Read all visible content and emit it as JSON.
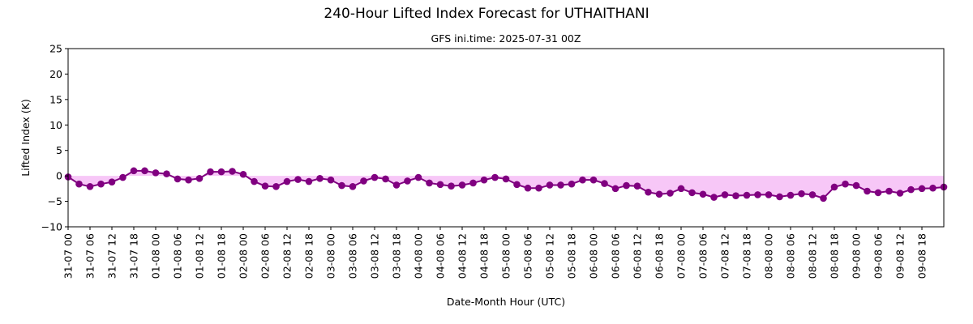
{
  "chart_data": {
    "type": "line",
    "title": "240-Hour Lifted Index Forecast for UTHAITHANI",
    "subtitle": "GFS ini.time: 2025-07-31 00Z",
    "xlabel": "Date-Month Hour (UTC)",
    "ylabel": "Lifted Index (K)",
    "ylim": [
      -10,
      25
    ],
    "yticks": [
      -10,
      -5,
      0,
      5,
      10,
      15,
      20,
      25
    ],
    "xtick_labels": [
      "31-07 00",
      "31-07 06",
      "31-07 12",
      "31-07 18",
      "01-08 00",
      "01-08 06",
      "01-08 12",
      "01-08 18",
      "02-08 00",
      "02-08 06",
      "02-08 12",
      "02-08 18",
      "03-08 00",
      "03-08 06",
      "03-08 12",
      "03-08 18",
      "04-08 00",
      "04-08 06",
      "04-08 12",
      "04-08 18",
      "05-08 00",
      "05-08 06",
      "05-08 12",
      "05-08 18",
      "06-08 00",
      "06-08 06",
      "06-08 12",
      "06-08 18",
      "07-08 00",
      "07-08 06",
      "07-08 12",
      "07-08 18",
      "08-08 00",
      "08-08 06",
      "08-08 12",
      "08-08 18",
      "09-08 00",
      "09-08 06",
      "09-08 12",
      "09-08 18"
    ],
    "x_hours": [
      0,
      3,
      6,
      9,
      12,
      15,
      18,
      21,
      24,
      27,
      30,
      33,
      36,
      39,
      42,
      45,
      48,
      51,
      54,
      57,
      60,
      63,
      66,
      69,
      72,
      75,
      78,
      81,
      84,
      87,
      90,
      93,
      96,
      99,
      102,
      105,
      108,
      111,
      114,
      117,
      120,
      123,
      126,
      129,
      132,
      135,
      138,
      141,
      144,
      147,
      150,
      153,
      156,
      159,
      162,
      165,
      168,
      171,
      174,
      177,
      180,
      183,
      186,
      189,
      192,
      195,
      198,
      201,
      204,
      207,
      210,
      213,
      216,
      219,
      222,
      225,
      228,
      231,
      234,
      237,
      240
    ],
    "series": [
      {
        "values": [
          -0.2,
          -1.6,
          -2.1,
          -1.6,
          -1.2,
          -0.3,
          1.0,
          1.0,
          0.6,
          0.4,
          -0.6,
          -0.8,
          -0.5,
          0.8,
          0.8,
          0.9,
          0.3,
          -1.1,
          -2.0,
          -2.1,
          -1.1,
          -0.7,
          -1.1,
          -0.5,
          -0.8,
          -1.9,
          -2.1,
          -1.0,
          -0.3,
          -0.6,
          -1.8,
          -1.0,
          -0.3,
          -1.4,
          -1.7,
          -2.0,
          -1.8,
          -1.4,
          -0.8,
          -0.3,
          -0.6,
          -1.7,
          -2.4,
          -2.4,
          -1.8,
          -1.8,
          -1.6,
          -0.8,
          -0.8,
          -1.5,
          -2.5,
          -1.9,
          -2.0,
          -3.2,
          -3.6,
          -3.4,
          -2.5,
          -3.3,
          -3.6,
          -4.2,
          -3.7,
          -3.9,
          -3.8,
          -3.7,
          -3.7,
          -4.1,
          -3.8,
          -3.5,
          -3.7,
          -4.4,
          -2.2,
          -1.6,
          -1.9,
          -3.0,
          -3.3,
          -3.0,
          -3.4,
          -2.7,
          -2.5,
          -2.4,
          -2.2
        ]
      }
    ],
    "colors": {
      "line": "#800080",
      "marker": "#800080",
      "fill": "#ee82ee",
      "axis": "#000000"
    }
  }
}
